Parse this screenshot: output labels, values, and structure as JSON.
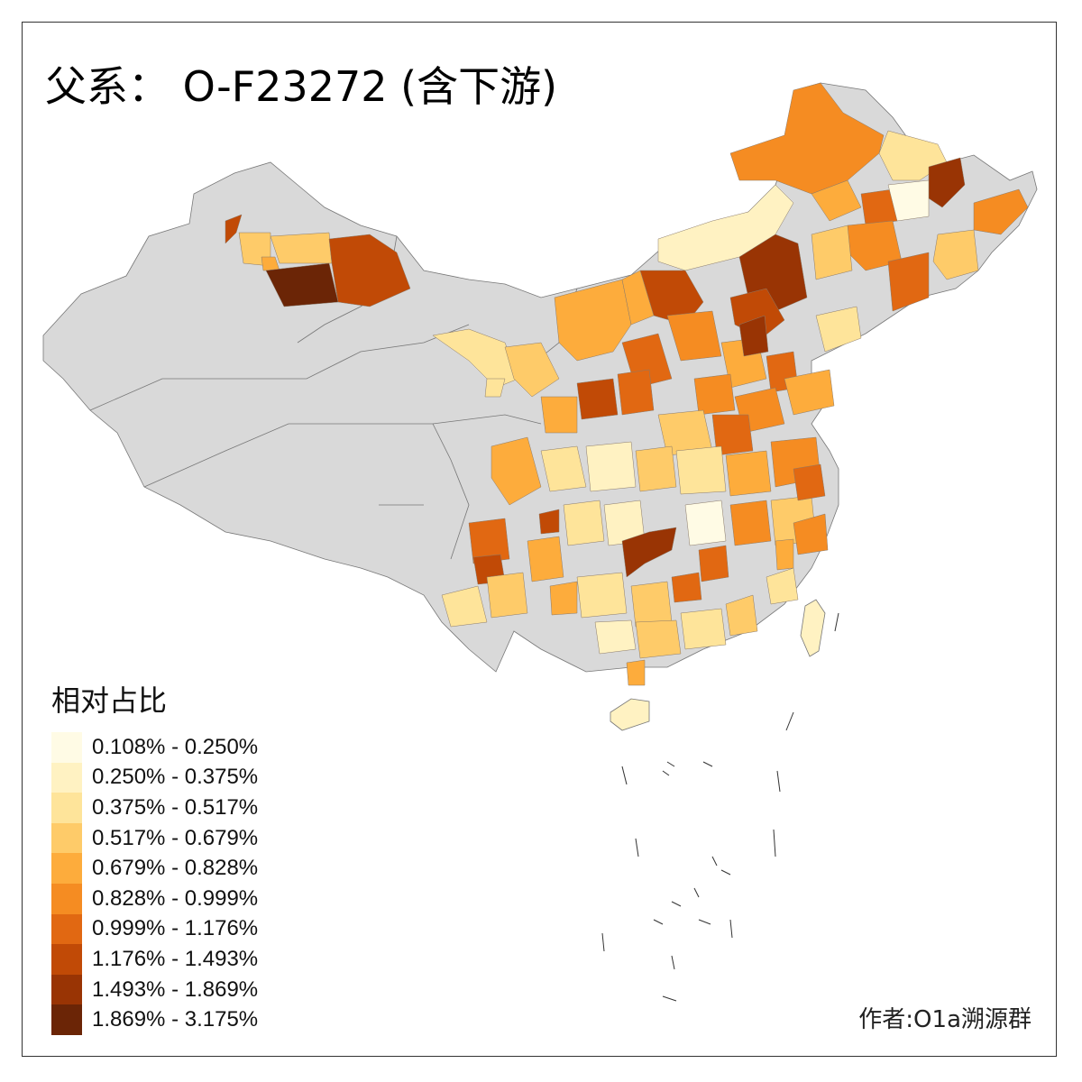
{
  "title": "父系： O-F23272 (含下游)",
  "legend": {
    "title": "相对占比",
    "classes": [
      {
        "label": "0.108% - 0.250%",
        "color": "#fffbe5"
      },
      {
        "label": "0.250% - 0.375%",
        "color": "#fff2c2"
      },
      {
        "label": "0.375% - 0.517%",
        "color": "#fee49a"
      },
      {
        "label": "0.517% - 0.679%",
        "color": "#fecb69"
      },
      {
        "label": "0.679% - 0.828%",
        "color": "#fdac3c"
      },
      {
        "label": "0.828% - 0.999%",
        "color": "#f58c22"
      },
      {
        "label": "0.999% - 1.176%",
        "color": "#e16812"
      },
      {
        "label": "1.176% - 1.493%",
        "color": "#c14a06"
      },
      {
        "label": "1.493% - 1.869%",
        "color": "#993404"
      },
      {
        "label": "1.869% - 3.175%",
        "color": "#6b2506"
      }
    ]
  },
  "no_data_color": "#d9d9d9",
  "author": "作者:O1a溯源群"
}
